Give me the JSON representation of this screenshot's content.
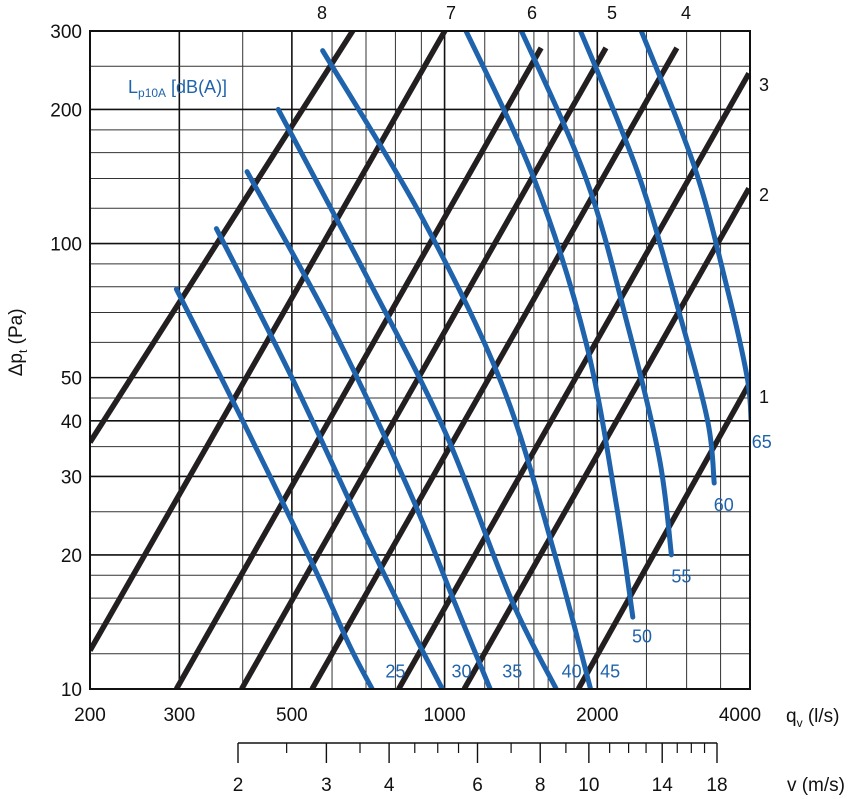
{
  "chart_data": {
    "type": "line",
    "scale": "log-log",
    "colors": {
      "velocity_lines": "#231f20",
      "sound_lines": "#1f63ad",
      "grid": "#222222"
    },
    "x_axis": {
      "label": "q",
      "sub": "v",
      "unit": "(l/s)",
      "ticks": [
        200,
        300,
        500,
        1000,
        2000,
        4000
      ],
      "tick_labels": [
        "200",
        "300",
        "500",
        "1000",
        "2000",
        "4000"
      ],
      "range": [
        200,
        4000
      ]
    },
    "y_axis": {
      "label": "Δp",
      "sub": "t",
      "unit": "(Pa)",
      "ticks": [
        10,
        20,
        30,
        40,
        50,
        100,
        200,
        300
      ],
      "tick_labels": [
        "10",
        "20",
        "30",
        "40",
        "50",
        "100",
        "200",
        "300"
      ],
      "range": [
        10,
        300
      ]
    },
    "velocity_axis": {
      "label": "v (m/s)",
      "ticks": [
        2,
        3,
        4,
        6,
        8,
        10,
        14,
        18
      ],
      "tick_labels": [
        "2",
        "3",
        "4",
        "6",
        "8",
        "10",
        "14",
        "18"
      ],
      "minor": [
        2.5,
        3.5,
        4.5,
        5,
        5.5,
        7,
        9,
        11,
        12,
        13,
        15,
        16,
        17
      ],
      "range": [
        2,
        18
      ]
    },
    "sound_legend": {
      "main": "L",
      "sub": "p10A",
      "rest": " [dB(A)]"
    },
    "velocity_lines": [
      {
        "name": "1",
        "x": [
          1835,
          3980
        ],
        "y": [
          10,
          48.3
        ]
      },
      {
        "name": "2",
        "x": [
          1093,
          3980
        ],
        "y": [
          10,
          133
        ]
      },
      {
        "name": "3",
        "x": [
          812,
          3980
        ],
        "y": [
          10,
          241
        ]
      },
      {
        "name": "4",
        "x": [
          548,
          2870
        ],
        "y": [
          10,
          275
        ]
      },
      {
        "name": "5",
        "x": [
          398,
          2080
        ],
        "y": [
          10,
          275
        ]
      },
      {
        "name": "6",
        "x": [
          296,
          1550
        ],
        "y": [
          10,
          275
        ]
      },
      {
        "name": "7",
        "x": [
          200,
          1050
        ],
        "y": [
          12.2,
          330
        ]
      },
      {
        "name": "8",
        "x": [
          200,
          695
        ],
        "y": [
          35.8,
          330
        ]
      }
    ],
    "sound_curves": [
      {
        "name": "25",
        "points": [
          [
            296,
            79
          ],
          [
            400,
            40
          ],
          [
            550,
            19
          ],
          [
            650,
            12.5
          ],
          [
            720,
            10
          ]
        ]
      },
      {
        "name": "30",
        "points": [
          [
            355,
            108
          ],
          [
            500,
            50
          ],
          [
            700,
            22
          ],
          [
            850,
            14
          ],
          [
            990,
            10
          ]
        ]
      },
      {
        "name": "35",
        "points": [
          [
            408,
            145
          ],
          [
            600,
            65
          ],
          [
            850,
            28
          ],
          [
            1050,
            15.5
          ],
          [
            1230,
            10
          ]
        ]
      },
      {
        "name": "40",
        "points": [
          [
            470,
            200
          ],
          [
            700,
            85
          ],
          [
            1000,
            38
          ],
          [
            1350,
            16
          ],
          [
            1660,
            10
          ]
        ]
      },
      {
        "name": "45",
        "points": [
          [
            575,
            271
          ],
          [
            900,
            115
          ],
          [
            1300,
            48
          ],
          [
            1650,
            20
          ],
          [
            1940,
            10
          ]
        ]
      },
      {
        "name": "50",
        "points": [
          [
            1080,
            315
          ],
          [
            1500,
            140
          ],
          [
            1900,
            60
          ],
          [
            2180,
            26
          ],
          [
            2350,
            14.5
          ]
        ]
      },
      {
        "name": "55",
        "points": [
          [
            1390,
            315
          ],
          [
            1900,
            140
          ],
          [
            2300,
            65
          ],
          [
            2650,
            33
          ],
          [
            2800,
            20
          ]
        ]
      },
      {
        "name": "60",
        "points": [
          [
            1820,
            315
          ],
          [
            2400,
            145
          ],
          [
            2900,
            70
          ],
          [
            3300,
            40
          ],
          [
            3400,
            29
          ]
        ]
      },
      {
        "name": "65",
        "points": [
          [
            2400,
            315
          ],
          [
            3100,
            150
          ],
          [
            3600,
            80
          ],
          [
            3950,
            50
          ],
          [
            4020,
            40
          ]
        ]
      }
    ],
    "sound_labels": [
      {
        "text": "25",
        "x": 800,
        "y": 11
      },
      {
        "text": "30",
        "x": 1080,
        "y": 11
      },
      {
        "text": "35",
        "x": 1360,
        "y": 11
      },
      {
        "text": "40",
        "x": 1780,
        "y": 11
      },
      {
        "text": "45",
        "x": 2120,
        "y": 11
      },
      {
        "text": "50",
        "x": 2450,
        "y": 13.2
      },
      {
        "text": "55",
        "x": 2930,
        "y": 18
      },
      {
        "text": "60",
        "x": 3550,
        "y": 26
      },
      {
        "text": "65",
        "x": 4220,
        "y": 36
      }
    ]
  }
}
